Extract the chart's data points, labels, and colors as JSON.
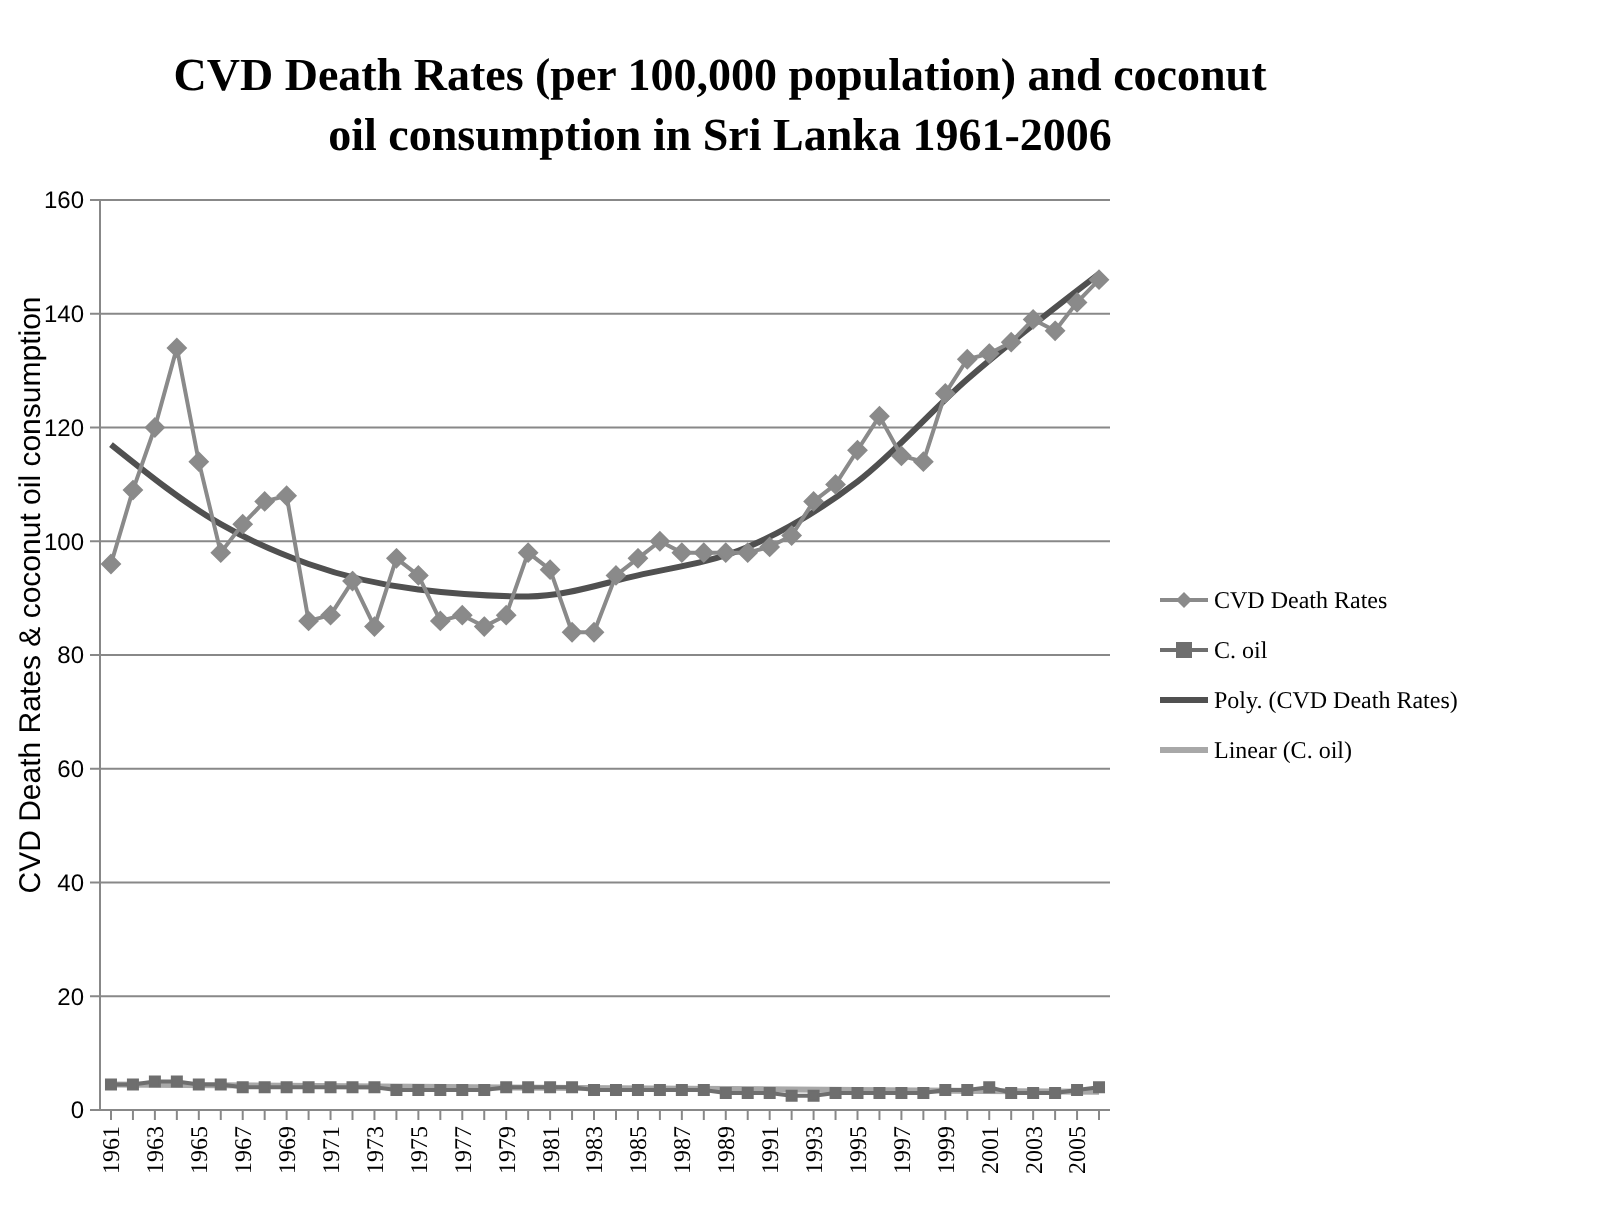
{
  "chart_data": {
    "type": "line",
    "title": "CVD Death Rates (per 100,000 population) and coconut oil consumption in Sri Lanka 1961-2006",
    "ylabel": "CVD Death Rates & coconut oil consumption",
    "x": [
      1961,
      1962,
      1963,
      1964,
      1965,
      1966,
      1967,
      1968,
      1969,
      1970,
      1971,
      1972,
      1973,
      1974,
      1975,
      1976,
      1977,
      1978,
      1979,
      1980,
      1981,
      1982,
      1983,
      1984,
      1985,
      1986,
      1987,
      1988,
      1989,
      1990,
      1991,
      1992,
      1993,
      1994,
      1995,
      1996,
      1997,
      1998,
      1999,
      2000,
      2001,
      2002,
      2003,
      2004,
      2005,
      2006
    ],
    "xlim": [
      1960.5,
      2006.5
    ],
    "xticks": [
      1961,
      {
        "value": 1962,
        "label": null
      },
      1963,
      {
        "value": 1964,
        "label": null
      },
      1965,
      {
        "value": 1966,
        "label": null
      },
      1967,
      {
        "value": 1968,
        "label": null
      },
      1969,
      {
        "value": 1970,
        "label": null
      },
      1971,
      {
        "value": 1972,
        "label": null
      },
      1973,
      {
        "value": 1974,
        "label": null
      },
      1975,
      {
        "value": 1976,
        "label": null
      },
      1977,
      {
        "value": 1978,
        "label": null
      },
      1979,
      {
        "value": 1980,
        "label": null
      },
      1981,
      {
        "value": 1982,
        "label": null
      },
      1983,
      {
        "value": 1984,
        "label": null
      },
      1985,
      {
        "value": 1986,
        "label": null
      },
      1987,
      {
        "value": 1988,
        "label": null
      },
      1989,
      {
        "value": 1990,
        "label": null
      },
      1991,
      {
        "value": 1992,
        "label": null
      },
      1993,
      {
        "value": 1994,
        "label": null
      },
      1995,
      {
        "value": 1996,
        "label": null
      },
      1997,
      {
        "value": 1998,
        "label": null
      },
      1999,
      {
        "value": 2000,
        "label": null
      },
      2001,
      {
        "value": 2002,
        "label": null
      },
      2003,
      {
        "value": 2004,
        "label": null
      },
      2005,
      {
        "value": 2006,
        "label": null
      }
    ],
    "ylim": [
      0,
      160
    ],
    "yticks": [
      0,
      20,
      40,
      60,
      80,
      100,
      120,
      140,
      160
    ],
    "grid": "y",
    "legend": "right",
    "series": [
      {
        "name": "CVD Death Rates",
        "color": "#8a8a8a",
        "marker": "diamond",
        "values": [
          96,
          109,
          120,
          134,
          114,
          98,
          103,
          107,
          108,
          86,
          87,
          93,
          85,
          97,
          94,
          86,
          87,
          85,
          87,
          98,
          95,
          84,
          84,
          94,
          97,
          100,
          98,
          98,
          98,
          98,
          99,
          101,
          107,
          110,
          116,
          122,
          115,
          114,
          126,
          132,
          133,
          135,
          139,
          137,
          142,
          146
        ]
      },
      {
        "name": "C. oil",
        "color": "#6e6e6e",
        "marker": "square",
        "values": [
          4.5,
          4.5,
          5,
          5,
          4.5,
          4.5,
          4,
          4,
          4,
          4,
          4,
          4,
          4,
          3.5,
          3.5,
          3.5,
          3.5,
          3.5,
          4,
          4,
          4,
          4,
          3.5,
          3.5,
          3.5,
          3.5,
          3.5,
          3.5,
          3,
          3,
          3,
          2.5,
          2.5,
          3,
          3,
          3,
          3,
          3,
          3.5,
          3.5,
          4,
          3,
          3,
          3,
          3.5,
          4
        ]
      },
      {
        "name": "Poly. (CVD Death Rates)",
        "color": "#505050",
        "marker": "none",
        "x": [
          1961,
          1966,
          1970,
          1975,
          1980,
          1985,
          1990,
          1995,
          2000,
          2006
        ],
        "values": [
          117,
          103,
          96,
          91.5,
          90.3,
          94,
          99,
          110.5,
          128.5,
          147
        ]
      },
      {
        "name": "Linear (C. oil)",
        "color": "#a8a8a8",
        "marker": "none",
        "x": [
          1961,
          2006
        ],
        "values": [
          4.5,
          3.2
        ]
      }
    ]
  }
}
